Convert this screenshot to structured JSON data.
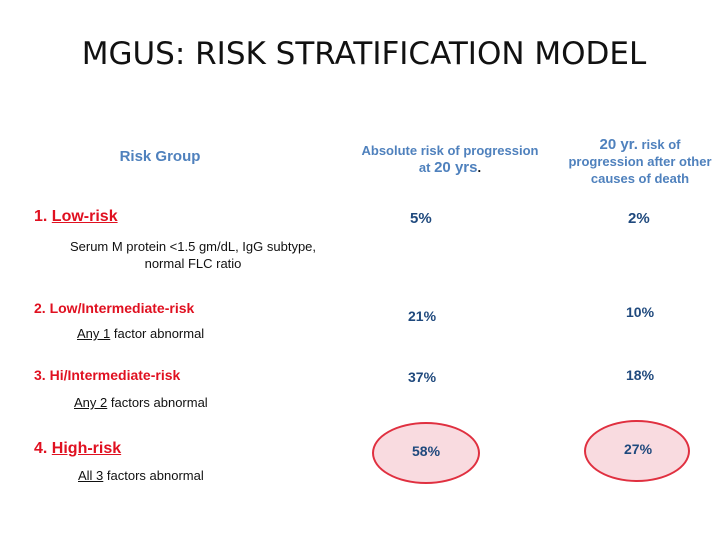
{
  "title": "MGUS: RISK STRATIFICATION MODEL",
  "headers": {
    "risk_group": "Risk Group",
    "abs_risk": {
      "line1": "Absolute risk of progression",
      "at": "at",
      "num": "20 yrs",
      "end": "."
    },
    "twenty_yr": {
      "num": "20 yr.",
      "rest1": "risk of",
      "line2": "progression after other",
      "line3": "causes of death"
    }
  },
  "rows": [
    {
      "number": "1.",
      "label": "Low-risk",
      "desc_line1": "Serum M protein <1.5 gm/dL, IgG subtype,",
      "desc_line2": "normal FLC ratio",
      "abs": "5%",
      "yr20": "2%"
    },
    {
      "number": "2.",
      "label": "Low/Intermediate-risk",
      "desc_num": "Any 1",
      "desc_rest": "factor abnormal",
      "abs": "21%",
      "yr20": "10%"
    },
    {
      "number": "3.",
      "label": "Hi/Intermediate-risk",
      "desc_num": "Any 2",
      "desc_rest": "factors abnormal",
      "abs": "37%",
      "yr20": "18%"
    },
    {
      "number": "4.",
      "label": "High-risk",
      "desc_num": "All 3",
      "desc_rest": "factors abnormal",
      "abs": "58%",
      "yr20": "27%"
    }
  ],
  "colors": {
    "header_blue": "#4f81bd",
    "risk_red": "#e01020",
    "value_navy": "#1f497d",
    "highlight_border": "#e03040",
    "highlight_fill": "#f9dbe0"
  }
}
